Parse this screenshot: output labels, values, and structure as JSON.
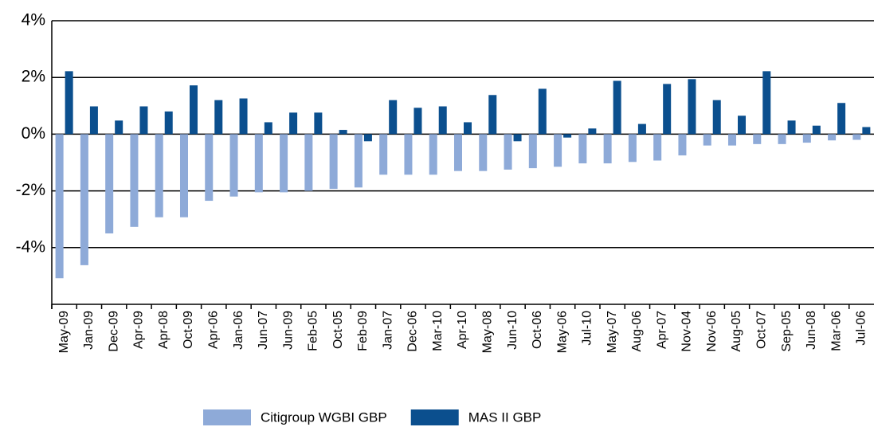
{
  "chart_data": {
    "type": "bar",
    "categories": [
      "May-09",
      "Jan-09",
      "Dec-09",
      "Apr-09",
      "Apr-08",
      "Oct-09",
      "Apr-06",
      "Jan-06",
      "Jun-07",
      "Jun-09",
      "Feb-05",
      "Oct-05",
      "Feb-09",
      "Jan-07",
      "Dec-06",
      "Mar-10",
      "Apr-10",
      "May-08",
      "Jun-10",
      "Oct-06",
      "May-06",
      "Jul-10",
      "May-07",
      "Aug-06",
      "Apr-07",
      "Nov-04",
      "Nov-06",
      "Aug-05",
      "Oct-07",
      "Sep-05",
      "Jun-08",
      "Mar-06",
      "Jul-06"
    ],
    "series": [
      {
        "name": "Citigroup WGBI GBP",
        "color": "#8eaad8",
        "values": [
          -5.08,
          -4.62,
          -3.5,
          -3.27,
          -2.93,
          -2.93,
          -2.35,
          -2.2,
          -2.05,
          -2.05,
          -2.0,
          -1.93,
          -1.88,
          -1.43,
          -1.43,
          -1.43,
          -1.3,
          -1.3,
          -1.25,
          -1.2,
          -1.15,
          -1.03,
          -1.03,
          -0.98,
          -0.93,
          -0.75,
          -0.4,
          -0.4,
          -0.35,
          -0.35,
          -0.3,
          -0.22,
          -0.2
        ]
      },
      {
        "name": "MAS II GBP",
        "color": "#0b4f8e",
        "values": [
          2.22,
          0.98,
          0.48,
          0.98,
          0.8,
          1.72,
          1.2,
          1.26,
          0.42,
          0.76,
          0.76,
          0.15,
          -0.25,
          1.2,
          0.93,
          0.98,
          0.42,
          1.38,
          -0.25,
          1.6,
          -0.12,
          0.2,
          1.88,
          0.36,
          1.77,
          1.94,
          1.2,
          0.65,
          2.22,
          0.48,
          0.3,
          1.1,
          0.25
        ]
      }
    ],
    "ylim": [
      -6,
      4
    ],
    "yticks": [
      {
        "value": -4,
        "label": "-4%"
      },
      {
        "value": -2,
        "label": "-2%"
      },
      {
        "value": 0,
        "label": "0%"
      },
      {
        "value": 2,
        "label": "2%"
      },
      {
        "value": 4,
        "label": "4%"
      }
    ],
    "grid": true
  }
}
